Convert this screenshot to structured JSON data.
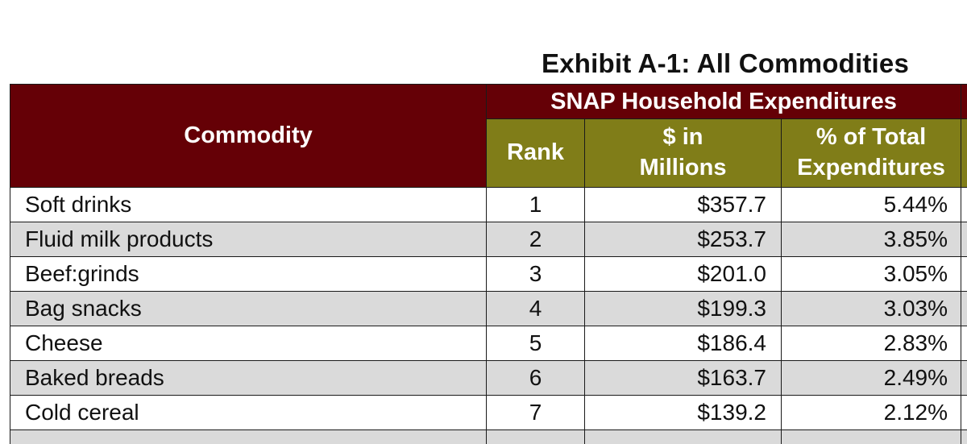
{
  "exhibit": {
    "title": "Exhibit A-1: All Commodities"
  },
  "table": {
    "headers": {
      "commodity": "Commodity",
      "group": "SNAP Household Expenditures",
      "rank": "Rank",
      "dollars_line1": "$ in",
      "dollars_line2": "Millions",
      "pct_line1": "% of Total",
      "pct_line2": "Expenditures"
    },
    "rows": [
      {
        "commodity": "Soft drinks",
        "rank": "1",
        "dollars": "$357.7",
        "pct": "5.44%"
      },
      {
        "commodity": "Fluid milk products",
        "rank": "2",
        "dollars": "$253.7",
        "pct": "3.85%"
      },
      {
        "commodity": "Beef:grinds",
        "rank": "3",
        "dollars": "$201.0",
        "pct": "3.05%"
      },
      {
        "commodity": "Bag snacks",
        "rank": "4",
        "dollars": "$199.3",
        "pct": "3.03%"
      },
      {
        "commodity": "Cheese",
        "rank": "5",
        "dollars": "$186.4",
        "pct": "2.83%"
      },
      {
        "commodity": "Baked breads",
        "rank": "6",
        "dollars": "$163.7",
        "pct": "2.49%"
      },
      {
        "commodity": "Cold cereal",
        "rank": "7",
        "dollars": "$139.2",
        "pct": "2.12%"
      }
    ]
  },
  "colors": {
    "header_maroon": "#650006",
    "header_olive": "#807d18",
    "row_stripe": "#dadada"
  }
}
